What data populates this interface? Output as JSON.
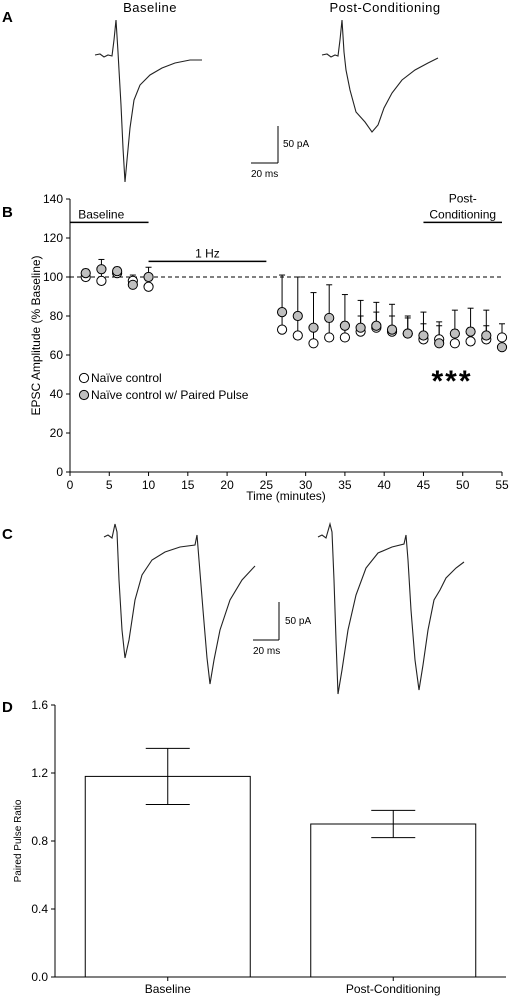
{
  "panels": {
    "a": {
      "letter": "A",
      "titles": [
        "Baseline",
        "Post-Conditioning"
      ],
      "scale_y": "50 pA",
      "scale_x": "20 ms"
    },
    "b": {
      "letter": "B"
    },
    "c": {
      "letter": "C",
      "scale_y": "50 pA",
      "scale_x": "20 ms"
    },
    "d": {
      "letter": "D"
    }
  },
  "chart_data": [
    {
      "type": "scatter",
      "xlabel": "Time (minutes)",
      "ylabel": "EPSC Amplitude (% Baseline)",
      "xlim": [
        0,
        55
      ],
      "ylim": [
        0,
        140
      ],
      "xticks": [
        0,
        5,
        10,
        15,
        20,
        25,
        30,
        35,
        40,
        45,
        50,
        55
      ],
      "yticks": [
        0,
        20,
        40,
        60,
        80,
        100,
        120,
        140
      ],
      "reference_line": 100,
      "period_labels": [
        {
          "text": "Baseline",
          "x_start": 0,
          "x_end": 10,
          "y": 128
        },
        {
          "text": "1 Hz",
          "x_start": 10,
          "x_end": 25,
          "y": 108
        },
        {
          "text": "Post-",
          "text2": "Conditioning",
          "x_start": 45,
          "x_end": 55,
          "y": 128
        }
      ],
      "significance": "***",
      "legend_placement": "left",
      "series": [
        {
          "name": "Naïve control",
          "fill": "#ffffff",
          "x": [
            2,
            4,
            6,
            8,
            10,
            27,
            29,
            31,
            33,
            35,
            37,
            39,
            41,
            43,
            45,
            47,
            49,
            51,
            53,
            55
          ],
          "y": [
            100,
            98,
            102,
            98,
            95,
            73,
            70,
            66,
            69,
            69,
            72,
            74,
            72,
            71,
            68,
            68,
            66,
            67,
            68,
            69
          ],
          "err": [
            2,
            4,
            2,
            3,
            3,
            9,
            9,
            8,
            8,
            8,
            8,
            8,
            8,
            8,
            8,
            7,
            7,
            7,
            7,
            7
          ]
        },
        {
          "name": "Naïve control w/ Paired Pulse",
          "fill": "#bfbfbf",
          "x": [
            2,
            4,
            6,
            8,
            10,
            27,
            29,
            31,
            33,
            35,
            37,
            39,
            41,
            43,
            45,
            47,
            49,
            51,
            53,
            55
          ],
          "y": [
            102,
            104,
            103,
            96,
            100,
            82,
            80,
            74,
            79,
            75,
            74,
            75,
            73,
            71,
            70,
            66,
            71,
            72,
            70,
            64
          ],
          "err": [
            2,
            5,
            2,
            3,
            5,
            19,
            20,
            18,
            17,
            16,
            14,
            12,
            13,
            9,
            12,
            11,
            12,
            12,
            13,
            4
          ]
        }
      ]
    },
    {
      "type": "bar",
      "ylabel": "Paired Pulse Ratio",
      "categories": [
        "Baseline",
        "Post-Conditioning"
      ],
      "values": [
        1.18,
        0.9
      ],
      "err": [
        0.165,
        0.08
      ],
      "ylim": [
        0,
        1.6
      ],
      "yticks": [
        "0.0",
        "0.4",
        "0.8",
        "1.2",
        "1.6"
      ]
    }
  ]
}
